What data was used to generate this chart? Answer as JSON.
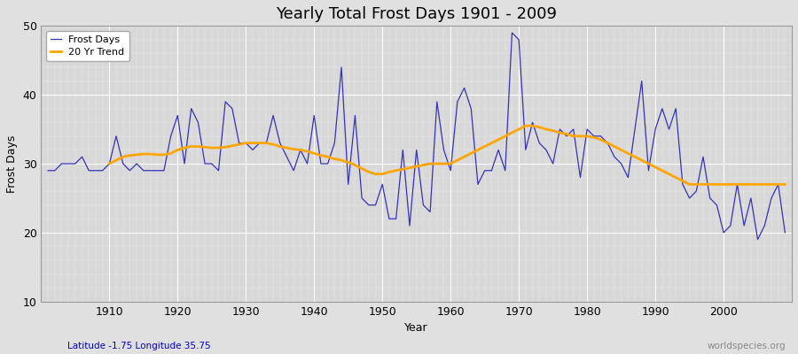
{
  "title": "Yearly Total Frost Days 1901 - 2009",
  "xlabel": "Year",
  "ylabel": "Frost Days",
  "subtitle": "Latitude -1.75 Longitude 35.75",
  "watermark": "worldspecies.org",
  "years": [
    1901,
    1902,
    1903,
    1904,
    1905,
    1906,
    1907,
    1908,
    1909,
    1910,
    1911,
    1912,
    1913,
    1914,
    1915,
    1916,
    1917,
    1918,
    1919,
    1920,
    1921,
    1922,
    1923,
    1924,
    1925,
    1926,
    1927,
    1928,
    1929,
    1930,
    1931,
    1932,
    1933,
    1934,
    1935,
    1936,
    1937,
    1938,
    1939,
    1940,
    1941,
    1942,
    1943,
    1944,
    1945,
    1946,
    1947,
    1948,
    1949,
    1950,
    1951,
    1952,
    1953,
    1954,
    1955,
    1956,
    1957,
    1958,
    1959,
    1960,
    1961,
    1962,
    1963,
    1964,
    1965,
    1966,
    1967,
    1968,
    1969,
    1970,
    1971,
    1972,
    1973,
    1974,
    1975,
    1976,
    1977,
    1978,
    1979,
    1980,
    1981,
    1982,
    1983,
    1984,
    1985,
    1986,
    1987,
    1988,
    1989,
    1990,
    1991,
    1992,
    1993,
    1994,
    1995,
    1996,
    1997,
    1998,
    1999,
    2000,
    2001,
    2002,
    2003,
    2004,
    2005,
    2006,
    2007,
    2008,
    2009
  ],
  "frost_days": [
    29,
    29,
    30,
    30,
    30,
    31,
    29,
    29,
    29,
    30,
    34,
    30,
    29,
    30,
    29,
    29,
    29,
    29,
    34,
    37,
    30,
    38,
    36,
    30,
    30,
    29,
    39,
    38,
    33,
    33,
    32,
    33,
    33,
    37,
    33,
    31,
    29,
    32,
    30,
    37,
    30,
    30,
    33,
    44,
    27,
    37,
    25,
    24,
    24,
    27,
    22,
    22,
    32,
    21,
    32,
    24,
    23,
    39,
    32,
    29,
    39,
    41,
    38,
    27,
    29,
    29,
    32,
    29,
    49,
    48,
    32,
    36,
    33,
    32,
    30,
    35,
    34,
    35,
    28,
    35,
    34,
    34,
    33,
    31,
    30,
    28,
    35,
    42,
    29,
    35,
    38,
    35,
    38,
    27,
    25,
    26,
    31,
    25,
    24,
    20,
    21,
    27,
    21,
    25,
    19,
    21,
    25,
    27,
    20
  ],
  "trend_years": [
    1901,
    1902,
    1903,
    1904,
    1905,
    1906,
    1907,
    1908,
    1909,
    1910,
    1911,
    1912,
    1913,
    1914,
    1915,
    1916,
    1917,
    1918,
    1919,
    1920,
    1921,
    1922,
    1923,
    1924,
    1925,
    1926,
    1927,
    1928,
    1929,
    1930,
    1931,
    1932,
    1933,
    1934,
    1935,
    1936,
    1937,
    1938,
    1939,
    1940,
    1941,
    1942,
    1943,
    1944,
    1945,
    1946,
    1947,
    1948,
    1949,
    1950,
    1951,
    1952,
    1953,
    1954,
    1955,
    1956,
    1957,
    1958,
    1959,
    1960,
    1961,
    1962,
    1963,
    1964,
    1965,
    1966,
    1967,
    1968,
    1969,
    1970,
    1971,
    1972,
    1973,
    1974,
    1975,
    1976,
    1977,
    1978,
    1979,
    1980,
    1981,
    1982,
    1983,
    1984,
    1985,
    1986,
    1987,
    1988,
    1989,
    1990,
    1991,
    1992,
    1993,
    1994,
    1995,
    1996,
    1997,
    1998,
    1999,
    2000,
    2001,
    2002,
    2003,
    2004,
    2005,
    2006,
    2007,
    2008,
    2009
  ],
  "trend_values": [
    null,
    null,
    null,
    null,
    null,
    null,
    null,
    null,
    null,
    30.0,
    30.5,
    31.0,
    31.2,
    31.3,
    31.4,
    31.4,
    31.3,
    31.3,
    31.5,
    32.0,
    32.3,
    32.5,
    32.5,
    32.4,
    32.3,
    32.3,
    32.4,
    32.6,
    32.8,
    33.0,
    33.0,
    33.0,
    33.0,
    32.8,
    32.5,
    32.3,
    32.1,
    32.0,
    31.8,
    31.5,
    31.2,
    31.0,
    30.7,
    30.5,
    30.2,
    29.8,
    29.3,
    28.8,
    28.5,
    28.5,
    28.8,
    29.0,
    29.2,
    29.4,
    29.6,
    29.8,
    30.0,
    30.0,
    30.0,
    30.0,
    30.5,
    31.0,
    31.5,
    32.0,
    32.5,
    33.0,
    33.5,
    34.0,
    34.5,
    35.0,
    35.5,
    35.5,
    35.3,
    35.0,
    34.8,
    34.5,
    34.3,
    34.0,
    34.0,
    34.0,
    33.8,
    33.5,
    33.0,
    32.5,
    32.0,
    31.5,
    31.0,
    30.5,
    30.0,
    29.5,
    29.0,
    28.5,
    28.0,
    27.5,
    27.0,
    27.0,
    27.0,
    27.0,
    27.0,
    27.0,
    27.0,
    27.0,
    27.0,
    27.0,
    27.0,
    27.0,
    27.0,
    27.0,
    27.0,
    null,
    null,
    null
  ],
  "frost_color": "#3333bb",
  "trend_color": "#ffa500",
  "bg_color": "#e0e0e0",
  "plot_bg_color": "#d8d8d8",
  "ylim": [
    10,
    50
  ],
  "yticks": [
    10,
    20,
    30,
    40,
    50
  ],
  "xlim": [
    1900,
    2010
  ],
  "xticks": [
    1910,
    1920,
    1930,
    1940,
    1950,
    1960,
    1970,
    1980,
    1990,
    2000
  ]
}
